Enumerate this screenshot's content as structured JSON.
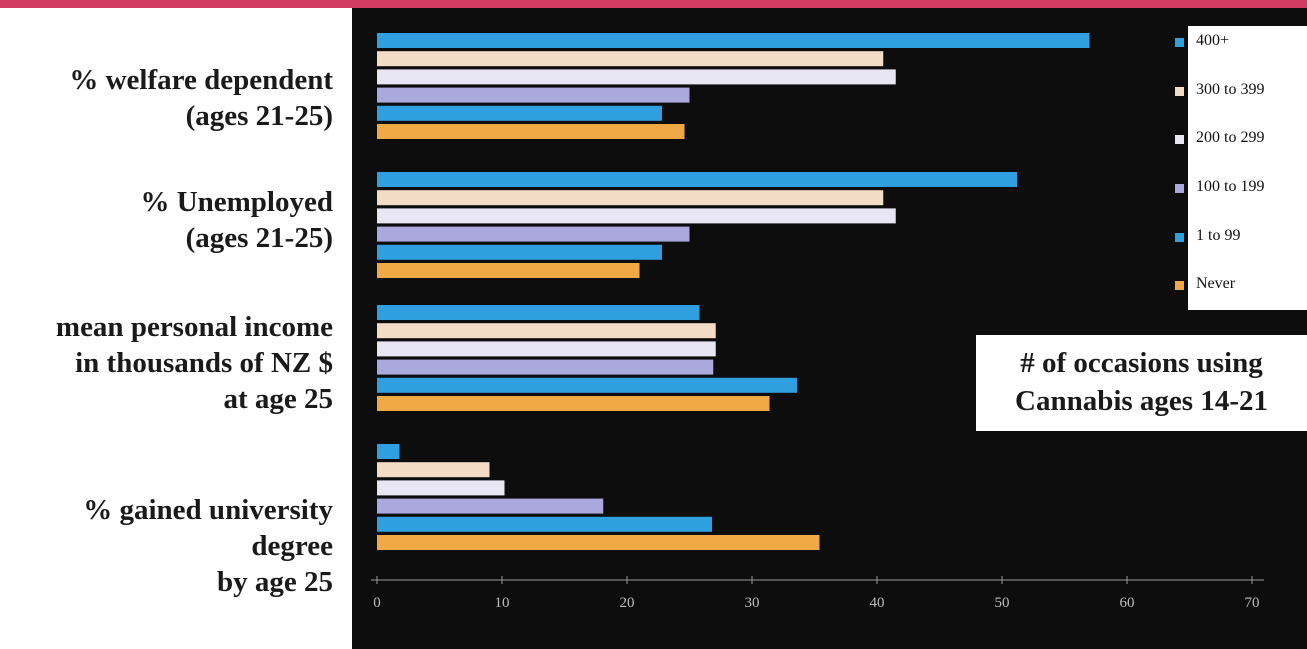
{
  "chart_data": {
    "type": "bar",
    "orientation": "horizontal",
    "categories": [
      [
        "% welfare dependent",
        "(ages 21-25)"
      ],
      [
        "% Unemployed",
        "(ages 21-25)"
      ],
      [
        "mean personal income",
        "in thousands of NZ $",
        "at age 25"
      ],
      [
        "% gained university",
        "degree",
        "by age 25"
      ]
    ],
    "series": [
      {
        "name": "400+",
        "color": "#2f9fe0",
        "values": [
          57,
          51.2,
          25.8,
          1.8
        ]
      },
      {
        "name": "300 to 399",
        "color": "#f3dcc6",
        "values": [
          40.5,
          40.5,
          27.1,
          9
        ]
      },
      {
        "name": "200 to 299",
        "color": "#e8e6f2",
        "values": [
          41.5,
          41.5,
          27.1,
          10.2
        ]
      },
      {
        "name": "100 to 199",
        "color": "#aaa8dc",
        "values": [
          25,
          25,
          26.9,
          18.1
        ]
      },
      {
        "name": "1 to 99",
        "color": "#2f9fe0",
        "values": [
          22.8,
          22.8,
          33.6,
          26.8
        ]
      },
      {
        "name": "Never",
        "color": "#f0a946",
        "values": [
          24.6,
          21,
          31.4,
          35.4
        ]
      }
    ],
    "xlim": [
      0,
      70
    ],
    "xticks": [
      "0",
      "10",
      "20",
      "30",
      "40",
      "50",
      "60",
      "70"
    ],
    "legend_position": "top-right",
    "annotation": [
      "# of occasions using",
      "Cannabis ages 14-21"
    ]
  }
}
